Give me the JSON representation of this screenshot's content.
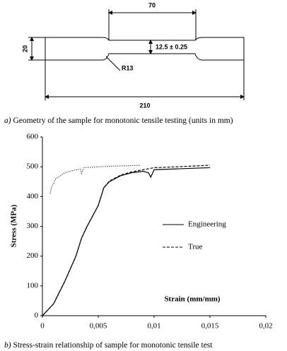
{
  "figure_a": {
    "dimensions": {
      "gauge_length": "70",
      "grip_width": "20",
      "gauge_width": "12.5 ± 0.25",
      "fillet_radius": "R13",
      "total_length": "210"
    },
    "label": "a)",
    "caption": "Geometry of the sample for monotonic tensile testing (units in mm)"
  },
  "figure_b": {
    "label": "b)",
    "caption": "Stress-strain relationship of sample for monotonic tensile test"
  },
  "chart_data": {
    "type": "line",
    "x_label": "Strain (mm/mm)",
    "y_label": "Stress (MPa)",
    "xlim": [
      0,
      0.02
    ],
    "ylim": [
      0,
      600
    ],
    "xticks": [
      0,
      {
        "value": 0.005,
        "label": "0,005"
      },
      {
        "value": 0.01,
        "label": "0,01"
      },
      {
        "value": 0.015,
        "label": "0,015"
      },
      {
        "value": 0.02,
        "label": "0,02"
      }
    ],
    "yticks": [
      0,
      100,
      200,
      300,
      400,
      500,
      600
    ],
    "legend": "center-right",
    "series": [
      {
        "name": "Engineering",
        "color": "#000000",
        "dash": "solid",
        "x": [
          0,
          0.001,
          0.002,
          0.003,
          0.0035,
          0.004,
          0.005,
          0.0055,
          0.006,
          0.007,
          0.008,
          0.009,
          0.0095,
          0.0097,
          0.01,
          0.012,
          0.015
        ],
        "values": [
          0,
          40,
          115,
          200,
          260,
          300,
          370,
          430,
          450,
          470,
          480,
          485,
          480,
          465,
          490,
          493,
          497
        ]
      },
      {
        "name": "True",
        "color": "#000000",
        "dash": "dashed",
        "x": [
          0,
          0.001,
          0.002,
          0.003,
          0.0035,
          0.004,
          0.005,
          0.0055,
          0.006,
          0.007,
          0.008,
          0.009,
          0.01,
          0.012,
          0.015
        ],
        "values": [
          0,
          40,
          115,
          200,
          260,
          300,
          370,
          430,
          452,
          472,
          483,
          490,
          497,
          500,
          505
        ]
      },
      {
        "name": null,
        "color": "#555555",
        "dash": "dotted",
        "x": [
          0.0007,
          0.0008,
          0.0012,
          0.002,
          0.003,
          0.0034,
          0.0035,
          0.0037,
          0.005,
          0.007,
          0.0088
        ],
        "values": [
          410,
          430,
          460,
          480,
          490,
          492,
          478,
          497,
          500,
          503,
          505
        ]
      }
    ]
  }
}
